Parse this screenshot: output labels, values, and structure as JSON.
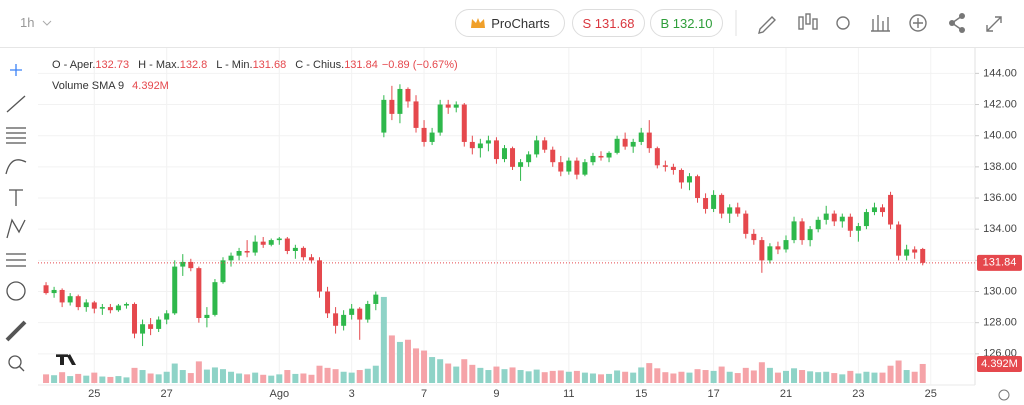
{
  "toolbar": {
    "timeframe": "1h",
    "procharts": "ProCharts",
    "sell": "S 131.68",
    "buy": "B 132.10"
  },
  "chart_data": {
    "type": "candlestick",
    "legend": {
      "open_label": "O - Aper.",
      "high_label": "H - Max.",
      "low_label": "L - Min.",
      "close_label": "C - Chius.",
      "change": "−0.89 (−0.67%)",
      "volume_label": "Volume SMA 9"
    },
    "volume_sma": {
      "value": 4.392,
      "label": "4.392M"
    },
    "up_color": "#2eb84b",
    "down_color": "#e5484d",
    "volume_up_color": "#8fd3c7",
    "volume_down_color": "#f5a3a8",
    "grid": true,
    "ylim": [
      124.0,
      145.5
    ],
    "vlim": [
      0,
      77
    ],
    "xlim": [
      -1,
      115.5
    ],
    "yticks": [
      {
        "value": 126,
        "label": "126.00"
      },
      {
        "value": 128,
        "label": "128.00"
      },
      {
        "value": 130,
        "label": "130.00"
      },
      {
        "value": 132,
        "label": "132.00"
      },
      {
        "value": 134,
        "label": "134.00"
      },
      {
        "value": 136,
        "label": "136.00"
      },
      {
        "value": 138,
        "label": "138.00"
      },
      {
        "value": 140,
        "label": "140.00"
      },
      {
        "value": 142,
        "label": "142.00"
      },
      {
        "value": 144,
        "label": "144.00"
      }
    ],
    "xticks": [
      {
        "value": 6,
        "label": "25"
      },
      {
        "value": 15,
        "label": "27"
      },
      {
        "value": 29,
        "label": "Ago"
      },
      {
        "value": 38,
        "label": "3"
      },
      {
        "value": 47,
        "label": "7"
      },
      {
        "value": 56,
        "label": "9"
      },
      {
        "value": 65,
        "label": "11"
      },
      {
        "value": 74,
        "label": "15"
      },
      {
        "value": 83,
        "label": "17"
      },
      {
        "value": 92,
        "label": "21"
      },
      {
        "value": 101,
        "label": "23"
      },
      {
        "value": 110,
        "label": "25"
      }
    ],
    "open": [
      130.4,
      129.9,
      130.1,
      129.3,
      129.7,
      129.0,
      129.3,
      128.9,
      129.0,
      128.8,
      129.1,
      129.2,
      127.3,
      127.9,
      127.6,
      128.2,
      128.6,
      131.6,
      131.9,
      131.5,
      128.3,
      128.5,
      130.6,
      132.0,
      132.3,
      132.6,
      132.5,
      133.2,
      133.0,
      133.3,
      133.4,
      132.6,
      132.8,
      132.2,
      132.0,
      130.0,
      128.6,
      127.8,
      128.5,
      128.9,
      128.2,
      129.2,
      140.2,
      142.3,
      141.4,
      143.0,
      142.2,
      140.5,
      139.6,
      140.2,
      142.0,
      141.8,
      142.0,
      139.6,
      139.2,
      139.5,
      139.7,
      138.5,
      139.2,
      138.0,
      138.3,
      138.8,
      139.7,
      139.1,
      138.3,
      137.7,
      138.4,
      137.5,
      138.3,
      138.7,
      138.6,
      138.9,
      139.8,
      139.3,
      139.6,
      140.2,
      139.2,
      138.1,
      138.0,
      137.8,
      137.0,
      137.4,
      136.0,
      135.3,
      136.2,
      135.0,
      135.4,
      135.0,
      133.7,
      133.3,
      132.0,
      132.9,
      132.7,
      133.3,
      134.5,
      133.3,
      134.0,
      134.6,
      135.0,
      134.5,
      134.8,
      133.9,
      134.2,
      135.1,
      135.4,
      136.2,
      134.3,
      132.3,
      132.7,
      132.73
    ],
    "high": [
      130.6,
      130.3,
      130.2,
      129.9,
      129.8,
      129.5,
      129.4,
      129.2,
      129.2,
      129.2,
      129.3,
      129.3,
      128.2,
      128.3,
      128.4,
      128.8,
      132.0,
      132.4,
      132.1,
      131.6,
      129.0,
      130.8,
      132.2,
      132.5,
      132.8,
      133.3,
      133.6,
      133.5,
      133.4,
      133.5,
      133.5,
      133.0,
      132.9,
      132.4,
      132.2,
      130.3,
      129.0,
      128.8,
      129.2,
      129.0,
      129.4,
      130.0,
      142.6,
      143.2,
      143.3,
      143.1,
      142.6,
      141.0,
      140.5,
      142.3,
      142.3,
      142.2,
      142.1,
      140.0,
      139.8,
      140.0,
      139.9,
      139.4,
      139.3,
      138.5,
      139.0,
      140.0,
      139.9,
      139.3,
      138.7,
      138.6,
      138.6,
      138.5,
      138.9,
      139.0,
      139.0,
      140.0,
      140.2,
      139.8,
      140.5,
      141.0,
      139.3,
      138.4,
      138.2,
      137.9,
      137.6,
      137.5,
      136.3,
      136.5,
      136.3,
      135.6,
      135.7,
      135.2,
      134.0,
      133.5,
      133.1,
      133.2,
      133.6,
      134.8,
      134.7,
      134.2,
      134.8,
      135.5,
      135.2,
      135.0,
      135.0,
      134.4,
      135.3,
      135.7,
      135.6,
      136.4,
      134.5,
      133.0,
      132.9,
      132.8
    ],
    "low": [
      129.8,
      129.6,
      129.0,
      129.1,
      128.8,
      128.7,
      128.6,
      128.5,
      128.6,
      128.7,
      128.9,
      127.0,
      126.5,
      127.2,
      127.4,
      127.9,
      128.5,
      131.0,
      131.3,
      128.0,
      127.7,
      128.4,
      130.5,
      131.6,
      132.0,
      132.2,
      132.3,
      132.8,
      132.9,
      133.0,
      132.4,
      132.1,
      132.0,
      131.8,
      129.6,
      128.3,
      127.3,
      127.5,
      128.2,
      126.9,
      128.0,
      128.8,
      139.9,
      141.0,
      140.8,
      141.8,
      140.2,
      139.3,
      139.4,
      140.0,
      141.4,
      141.5,
      139.3,
      138.8,
      138.6,
      139.0,
      138.2,
      138.3,
      137.8,
      137.1,
      138.0,
      138.6,
      138.9,
      138.0,
      137.4,
      137.5,
      137.2,
      137.4,
      138.1,
      138.4,
      138.3,
      138.8,
      139.1,
      138.9,
      139.4,
      138.9,
      137.9,
      137.7,
      137.5,
      136.6,
      136.5,
      135.7,
      135.0,
      135.1,
      134.7,
      134.4,
      134.8,
      133.4,
      133.0,
      131.2,
      131.8,
      132.4,
      132.5,
      133.1,
      133.0,
      132.9,
      133.8,
      134.3,
      134.2,
      134.1,
      133.5,
      133.2,
      134.0,
      134.9,
      134.8,
      134.0,
      132.0,
      132.0,
      132.1,
      131.68
    ],
    "close": [
      129.9,
      130.1,
      129.3,
      129.7,
      129.0,
      129.3,
      128.9,
      129.0,
      128.8,
      129.1,
      129.2,
      127.3,
      127.9,
      127.6,
      128.2,
      128.6,
      131.6,
      131.9,
      131.5,
      128.3,
      128.5,
      130.6,
      132.0,
      132.3,
      132.6,
      132.5,
      133.2,
      133.0,
      133.3,
      133.4,
      132.6,
      132.8,
      132.2,
      132.0,
      130.0,
      128.6,
      127.8,
      128.5,
      128.9,
      128.2,
      129.2,
      129.8,
      142.3,
      141.4,
      143.0,
      142.2,
      140.5,
      139.6,
      140.2,
      142.0,
      141.8,
      142.0,
      139.6,
      139.2,
      139.5,
      139.7,
      138.5,
      139.2,
      138.0,
      138.3,
      138.8,
      139.7,
      139.1,
      138.3,
      137.7,
      138.4,
      137.5,
      138.3,
      138.7,
      138.6,
      138.9,
      139.8,
      139.3,
      139.6,
      140.2,
      139.2,
      138.1,
      138.0,
      137.8,
      137.0,
      137.4,
      136.0,
      135.3,
      136.2,
      135.0,
      135.4,
      135.0,
      133.7,
      133.3,
      132.0,
      132.9,
      132.7,
      133.3,
      134.5,
      133.3,
      134.0,
      134.6,
      135.0,
      134.5,
      134.8,
      133.9,
      134.2,
      135.1,
      135.4,
      135.1,
      134.3,
      132.3,
      132.7,
      132.5,
      131.84
    ],
    "volume": [
      2.0,
      1.8,
      2.5,
      1.6,
      2.1,
      1.7,
      2.4,
      1.5,
      1.4,
      1.6,
      1.3,
      3.5,
      3.0,
      2.2,
      2.0,
      2.6,
      4.5,
      3.0,
      2.3,
      5.0,
      3.1,
      3.6,
      3.2,
      2.6,
      2.2,
      2.0,
      2.4,
      1.9,
      1.7,
      2.0,
      3.0,
      2.1,
      2.2,
      1.9,
      4.0,
      3.5,
      3.2,
      2.6,
      2.4,
      3.0,
      3.3,
      4.0,
      19.9,
      11.0,
      9.5,
      10.0,
      8.0,
      7.5,
      6.0,
      5.5,
      4.5,
      3.8,
      5.5,
      4.2,
      3.5,
      3.0,
      3.8,
      3.2,
      3.6,
      3.0,
      2.7,
      3.1,
      2.5,
      2.8,
      2.9,
      2.6,
      2.8,
      2.4,
      2.2,
      2.0,
      2.1,
      2.9,
      2.6,
      2.4,
      3.6,
      4.6,
      3.4,
      2.5,
      2.2,
      2.6,
      2.4,
      3.2,
      3.0,
      2.8,
      3.8,
      2.6,
      2.3,
      3.5,
      2.9,
      4.8,
      3.5,
      2.4,
      2.8,
      3.4,
      3.0,
      2.7,
      2.5,
      2.6,
      2.3,
      2.0,
      2.8,
      2.2,
      2.6,
      2.4,
      2.4,
      4.0,
      5.2,
      3.0,
      2.6,
      4.4
    ]
  }
}
